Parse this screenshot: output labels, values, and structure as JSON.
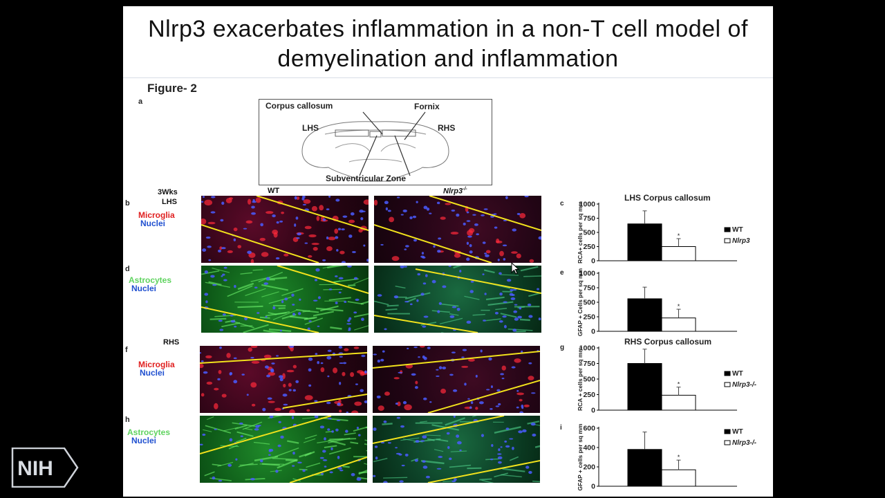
{
  "slide": {
    "title_line1": "Nlrp3 exacerbates inflammation in a non-T cell model of",
    "title_line2": "demyelination and inflammation",
    "figure_label": "Figure- 2"
  },
  "schematic": {
    "letter": "a",
    "corpus_callosum": "Corpus callosum",
    "fornix": "Fornix",
    "lhs": "LHS",
    "rhs": "RHS",
    "svz": "Subventricular Zone"
  },
  "panels": {
    "timepoint": "3Wks",
    "lhs": "LHS",
    "rhs": "RHS",
    "col_wt": "WT",
    "col_ko": "Nlrp3",
    "col_ko_sup": "-/-",
    "letters": {
      "b": "b",
      "d": "d",
      "f": "f",
      "h": "h"
    },
    "microglia": "Microglia",
    "nuclei": "Nuclei",
    "astrocytes": "Astrocytes"
  },
  "logo": {
    "text": "NIH"
  },
  "chart_data": [
    {
      "letter": "c",
      "type": "bar",
      "title": "LHS Corpus callosum",
      "ylabel": "RCA+ cells per sq mm",
      "ylim": [
        0,
        1000
      ],
      "yticks": [
        0,
        250,
        500,
        750,
        1000
      ],
      "categories": [
        "WT",
        "Nlrp3-/-"
      ],
      "values": [
        650,
        250
      ],
      "errors": [
        230,
        140
      ],
      "legend": [
        "WT",
        "Nlrp3"
      ],
      "significance": [
        "",
        "*"
      ],
      "colors": [
        "#000000",
        "#ffffff"
      ]
    },
    {
      "letter": "e",
      "type": "bar",
      "title": "",
      "ylabel": "GFAP + Cells per sq mm",
      "ylim": [
        0,
        1000
      ],
      "yticks": [
        0,
        250,
        500,
        750,
        1000
      ],
      "categories": [
        "WT",
        "Nlrp3-/-"
      ],
      "values": [
        560,
        230
      ],
      "errors": [
        200,
        150
      ],
      "legend": [],
      "significance": [
        "",
        "*"
      ],
      "colors": [
        "#000000",
        "#ffffff"
      ]
    },
    {
      "letter": "g",
      "type": "bar",
      "title": "RHS Corpus callosum",
      "ylabel": "RCA + cells per sq mm",
      "ylim": [
        0,
        1000
      ],
      "yticks": [
        0,
        250,
        500,
        750,
        1000
      ],
      "categories": [
        "WT",
        "Nlrp3-/-"
      ],
      "values": [
        750,
        240
      ],
      "errors": [
        230,
        130
      ],
      "legend": [
        "WT",
        "Nlrp3-/-"
      ],
      "significance": [
        "",
        "*"
      ],
      "colors": [
        "#000000",
        "#ffffff"
      ]
    },
    {
      "letter": "i",
      "type": "bar",
      "title": "",
      "ylabel": "GFAP + cells per sq mm",
      "ylim": [
        0,
        600
      ],
      "yticks": [
        0,
        200,
        400,
        600
      ],
      "categories": [
        "WT",
        "Nlrp3-/-"
      ],
      "values": [
        380,
        170
      ],
      "errors": [
        180,
        100
      ],
      "legend": [
        "WT",
        "Nlrp3-/-"
      ],
      "significance": [
        "",
        "*"
      ],
      "colors": [
        "#000000",
        "#ffffff"
      ]
    }
  ]
}
